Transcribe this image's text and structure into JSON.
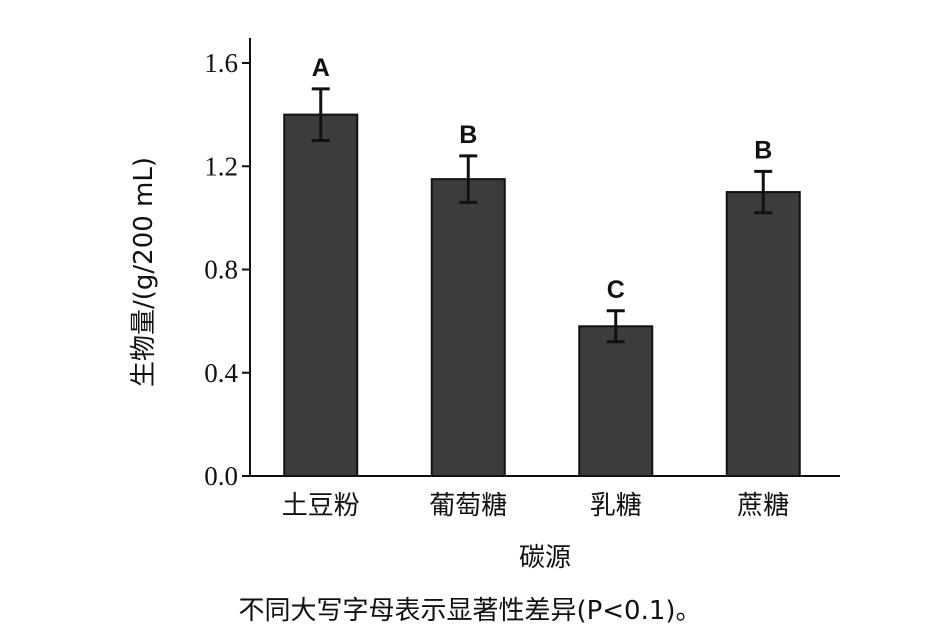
{
  "chart_data": {
    "type": "bar",
    "categories": [
      "土豆粉",
      "葡萄糖",
      "乳糖",
      "蔗糖"
    ],
    "values": [
      1.4,
      1.15,
      0.58,
      1.1
    ],
    "errors": [
      0.1,
      0.09,
      0.06,
      0.08
    ],
    "significance": [
      "A",
      "B",
      "C",
      "B"
    ],
    "xlabel": "碳源",
    "ylabel": "生物量/(g/200 mL)",
    "ylim": [
      0,
      1.7
    ],
    "yticks": [
      0.0,
      0.4,
      0.8,
      1.2,
      1.6
    ],
    "ytick_labels": [
      "0.0",
      "0.4",
      "0.8",
      "1.2",
      "1.6"
    ],
    "bar_color": "#3c3c3c",
    "grid": false,
    "caption": "不同大写字母表示显著性差异(P<0.1)。"
  }
}
